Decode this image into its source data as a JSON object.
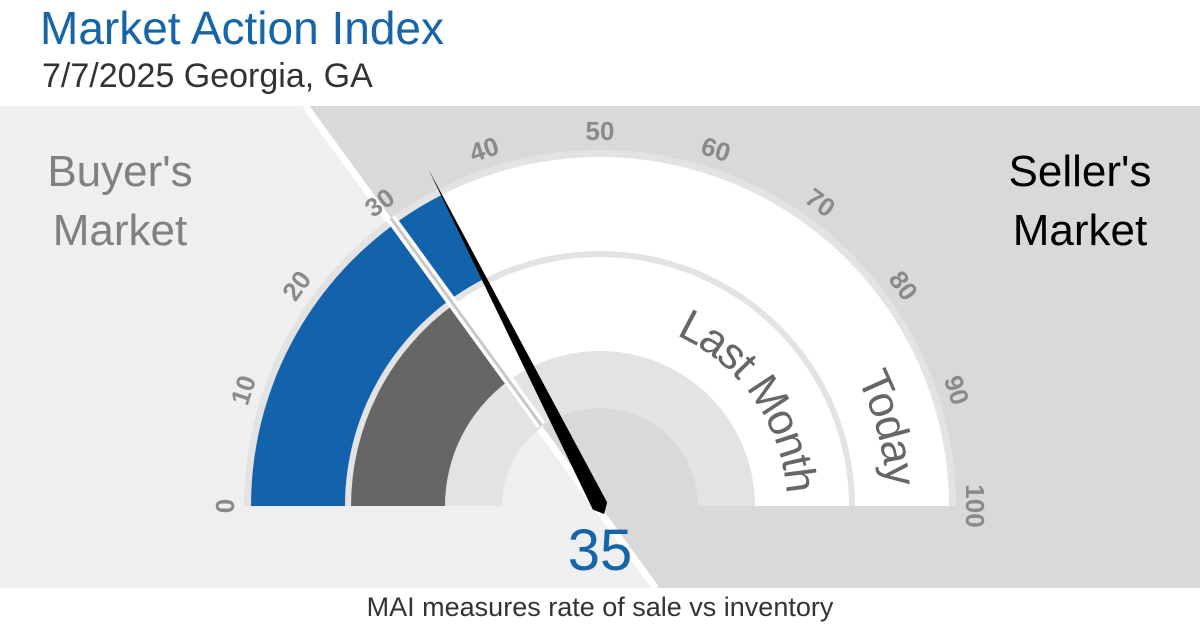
{
  "header": {
    "title": "Market Action Index",
    "subtitle": "7/7/2025 Georgia, GA"
  },
  "regions": {
    "buyers_line1": "Buyer's",
    "buyers_line2": "Market",
    "sellers_line1": "Seller's",
    "sellers_line2": "Market"
  },
  "footer": {
    "caption": "MAI measures rate of sale vs inventory"
  },
  "colors": {
    "today_fill": "#1263ab",
    "last_month_fill": "#666666",
    "buyers_background": "#efefef",
    "sellers_background": "#d9d9d9",
    "value_text": "#1565a8",
    "needle": "#000000"
  },
  "chart_data": {
    "type": "gauge",
    "scale": {
      "min": 0,
      "max": 100,
      "ticks": [
        0,
        10,
        20,
        30,
        40,
        50,
        60,
        70,
        80,
        90,
        100
      ]
    },
    "threshold": 30,
    "rings": [
      {
        "name": "Today",
        "value": 35
      },
      {
        "name": "Last Month",
        "value": 30
      }
    ],
    "needle_value": 35,
    "display_value": "35"
  }
}
